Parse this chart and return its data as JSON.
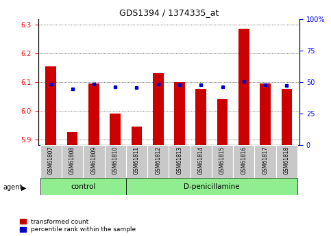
{
  "title": "GDS1394 / 1374335_at",
  "samples": [
    "GSM61807",
    "GSM61808",
    "GSM61809",
    "GSM61810",
    "GSM61811",
    "GSM61812",
    "GSM61813",
    "GSM61814",
    "GSM61815",
    "GSM61816",
    "GSM61817",
    "GSM61818"
  ],
  "bar_values": [
    6.155,
    5.925,
    6.095,
    5.99,
    5.945,
    6.13,
    6.1,
    6.075,
    6.04,
    6.285,
    6.095,
    6.075
  ],
  "blue_values": [
    6.093,
    6.075,
    6.092,
    6.083,
    6.08,
    6.093,
    6.09,
    6.09,
    6.083,
    6.103,
    6.09,
    6.088
  ],
  "ylim_left": [
    5.88,
    6.32
  ],
  "ylim_right": [
    0,
    100
  ],
  "yticks_left": [
    5.9,
    6.0,
    6.1,
    6.2,
    6.3
  ],
  "yticks_right": [
    0,
    25,
    50,
    75,
    100
  ],
  "bar_color": "#cc0000",
  "blue_color": "#0000cc",
  "control_samples": 4,
  "control_label": "control",
  "treatment_label": "D-penicillamine",
  "agent_label": "agent",
  "legend_red": "transformed count",
  "legend_blue": "percentile rank within the sample",
  "background_color": "#ffffff",
  "tick_bg_gray": "#c8c8c8",
  "control_bg": "#90ee90",
  "treatment_bg": "#90ee90"
}
